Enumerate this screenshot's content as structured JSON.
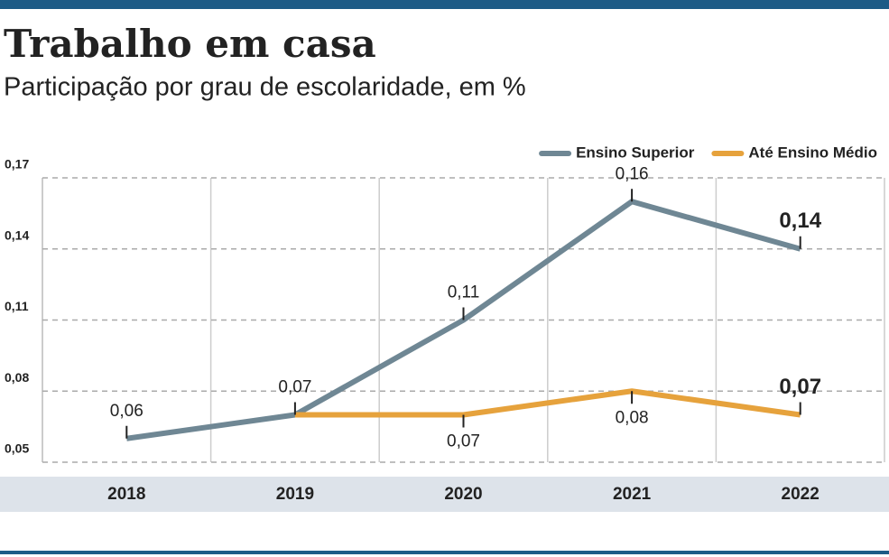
{
  "chart_data": {
    "type": "line",
    "title": "Trabalho em casa",
    "subtitle": "Participação por grau de escolaridade, em %",
    "categories": [
      "2018",
      "2019",
      "2020",
      "2021",
      "2022"
    ],
    "series": [
      {
        "name": "Ensino Superior",
        "color": "#6f8794",
        "values": [
          0.06,
          0.07,
          0.11,
          0.16,
          0.14
        ],
        "value_labels": [
          "0,06",
          "0,07",
          "0,11",
          "0,16",
          "0,14"
        ]
      },
      {
        "name": "Até Ensino Médio",
        "color": "#e6a23c",
        "values": [
          null,
          0.07,
          0.07,
          0.08,
          0.07
        ],
        "value_labels": [
          null,
          null,
          "0,07",
          "0,08",
          "0,07"
        ]
      }
    ],
    "ylim": [
      0.05,
      0.17
    ],
    "yticks": [
      {
        "value": 0.05,
        "label": "0,05"
      },
      {
        "value": 0.08,
        "label": "0,08"
      },
      {
        "value": 0.11,
        "label": "0,11"
      },
      {
        "value": 0.14,
        "label": "0,14"
      },
      {
        "value": 0.17,
        "label": "0,17"
      }
    ],
    "grid": true,
    "legend": "top-right"
  }
}
